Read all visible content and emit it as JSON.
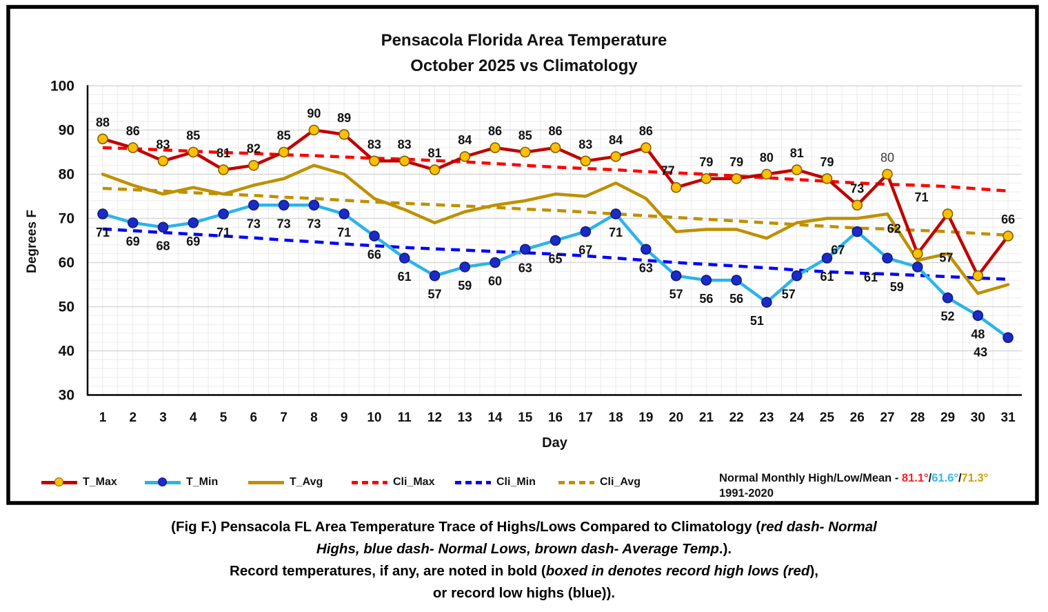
{
  "title": {
    "line1": "Pensacola Florida Area Temperature",
    "line2": "October 2025 vs Climatology"
  },
  "chart_data": {
    "type": "line",
    "title": "Pensacola Florida Area Temperature",
    "subtitle": "October 2025 vs Climatology",
    "xlabel": "Day",
    "ylabel": "Degrees F",
    "ylim": [
      30,
      100
    ],
    "y_ticks": [
      30,
      40,
      50,
      60,
      70,
      80,
      90,
      100
    ],
    "x_ticks": [
      1,
      2,
      3,
      4,
      5,
      6,
      7,
      8,
      9,
      10,
      11,
      12,
      13,
      14,
      15,
      16,
      17,
      18,
      19,
      20,
      21,
      22,
      23,
      24,
      25,
      26,
      27,
      28,
      29,
      30,
      31
    ],
    "grid": "minor horizontal every 2F, minor vertical every half day, light gray",
    "legend_position": "bottom",
    "series": [
      {
        "name": "T_Max",
        "type": "line-with-markers",
        "style": "solid",
        "line_color": "#C00000",
        "marker_color": "#FFC000",
        "marker_outline": "#7F6000",
        "data_labels": true,
        "label_position": "above",
        "values": [
          88,
          86,
          83,
          85,
          81,
          82,
          85,
          90,
          89,
          83,
          83,
          81,
          84,
          86,
          85,
          86,
          83,
          84,
          86,
          77,
          79,
          79,
          80,
          81,
          79,
          73,
          80,
          62,
          71,
          57,
          66
        ],
        "regular_weight_label_days": [
          27
        ]
      },
      {
        "name": "T_Min",
        "type": "line-with-markers",
        "style": "solid",
        "line_color": "#2AB4EA",
        "marker_color": "#1B2BC9",
        "marker_outline": "#101B7F",
        "data_labels": true,
        "label_position": "below",
        "values": [
          71,
          69,
          68,
          69,
          71,
          73,
          73,
          73,
          71,
          66,
          61,
          57,
          59,
          60,
          63,
          65,
          67,
          71,
          63,
          57,
          56,
          56,
          51,
          57,
          61,
          67,
          61,
          59,
          52,
          48,
          43
        ],
        "regular_weight_label_days": []
      },
      {
        "name": "T_Avg",
        "type": "line",
        "style": "solid",
        "line_color": "#BF9000",
        "data_labels": false,
        "values": [
          80,
          77.5,
          75.5,
          77,
          75.5,
          77.5,
          79,
          82,
          80,
          74.5,
          72,
          69,
          71.5,
          73,
          74,
          75.5,
          75,
          78,
          74.5,
          67,
          67.5,
          67.5,
          65.5,
          69,
          70,
          70,
          71,
          60.5,
          62,
          53,
          55
        ]
      },
      {
        "name": "Cli_Max",
        "type": "line",
        "style": "dashed",
        "line_color": "#FF0000",
        "data_labels": false,
        "values": [
          86,
          85.8,
          85.5,
          85.2,
          84.9,
          84.7,
          84.4,
          84.2,
          83.9,
          83.6,
          83.4,
          83.1,
          82.8,
          82.4,
          82,
          81.6,
          81.3,
          81,
          80.6,
          80.3,
          80,
          79.6,
          79.2,
          78.8,
          78.4,
          78,
          77.7,
          77.5,
          77.2,
          76.7,
          76.2
        ]
      },
      {
        "name": "Cli_Min",
        "type": "line",
        "style": "dashed",
        "line_color": "#0505FA",
        "data_labels": false,
        "values": [
          67.6,
          67.2,
          66.8,
          66.4,
          66,
          65.6,
          65.1,
          64.7,
          64.2,
          63.8,
          63.4,
          63.1,
          62.8,
          62.5,
          62.2,
          61.9,
          61.5,
          61,
          60.5,
          60,
          59.6,
          59.2,
          58.8,
          58.3,
          57.9,
          57.6,
          57.4,
          57.1,
          56.8,
          56.5,
          56.2
        ]
      },
      {
        "name": "Cli_Avg",
        "type": "line",
        "style": "dashed",
        "line_color": "#BF9000",
        "data_labels": false,
        "values": [
          76.8,
          76.5,
          76.2,
          75.8,
          75.5,
          75.2,
          74.8,
          74.5,
          74.1,
          73.7,
          73.4,
          73.1,
          72.8,
          72.5,
          72.1,
          71.8,
          71.4,
          71,
          70.6,
          70.2,
          69.8,
          69.4,
          69,
          68.6,
          68.2,
          67.8,
          67.6,
          67.3,
          67,
          66.6,
          66.2
        ]
      }
    ]
  },
  "legend": {
    "items": [
      {
        "label": "T_Max",
        "line_color": "#C00000",
        "dashed": false,
        "marker_color": "#FFC000",
        "marker_outline": "#7F6000"
      },
      {
        "label": "T_Min",
        "line_color": "#2AB4EA",
        "dashed": false,
        "marker_color": "#1B2BC9",
        "marker_outline": "#101B7F"
      },
      {
        "label": "T_Avg",
        "line_color": "#BF9000",
        "dashed": false
      },
      {
        "label": "Cli_Max",
        "line_color": "#FF0000",
        "dashed": true
      },
      {
        "label": "Cli_Min",
        "line_color": "#0505FA",
        "dashed": true
      },
      {
        "label": "Cli_Avg",
        "line_color": "#BF9000",
        "dashed": true
      }
    ]
  },
  "note": {
    "prefix": "Normal Monthly High/Low/Mean - ",
    "high": "81.1°",
    "separator1": "/",
    "low": "61.6°",
    "separator2": "/",
    "mean": "71.3°",
    "high_color": "#FF2020",
    "low_color": "#33B8F0",
    "mean_color": "#CFA000",
    "period": "1991-2020"
  },
  "caption": {
    "lines": [
      [
        {
          "text": "(Fig F.) Pensacola FL Area Temperature Trace of Highs/Lows Compared to Climatology (",
          "italic": false
        },
        {
          "text": "red dash- Normal",
          "italic": true
        }
      ],
      [
        {
          "text": "Highs, blue dash- Normal Lows, brown dash- Average Temp",
          "italic": true
        },
        {
          "text": ".).",
          "italic": false
        }
      ],
      [
        {
          "text": "Record temperatures, if any, are noted in bold (",
          "italic": false
        },
        {
          "text": "boxed in denotes record high lows (red",
          "italic": true
        },
        {
          "text": "),",
          "italic": false
        }
      ],
      [
        {
          "text": "or record low highs (blue)).",
          "italic": false
        }
      ]
    ]
  }
}
